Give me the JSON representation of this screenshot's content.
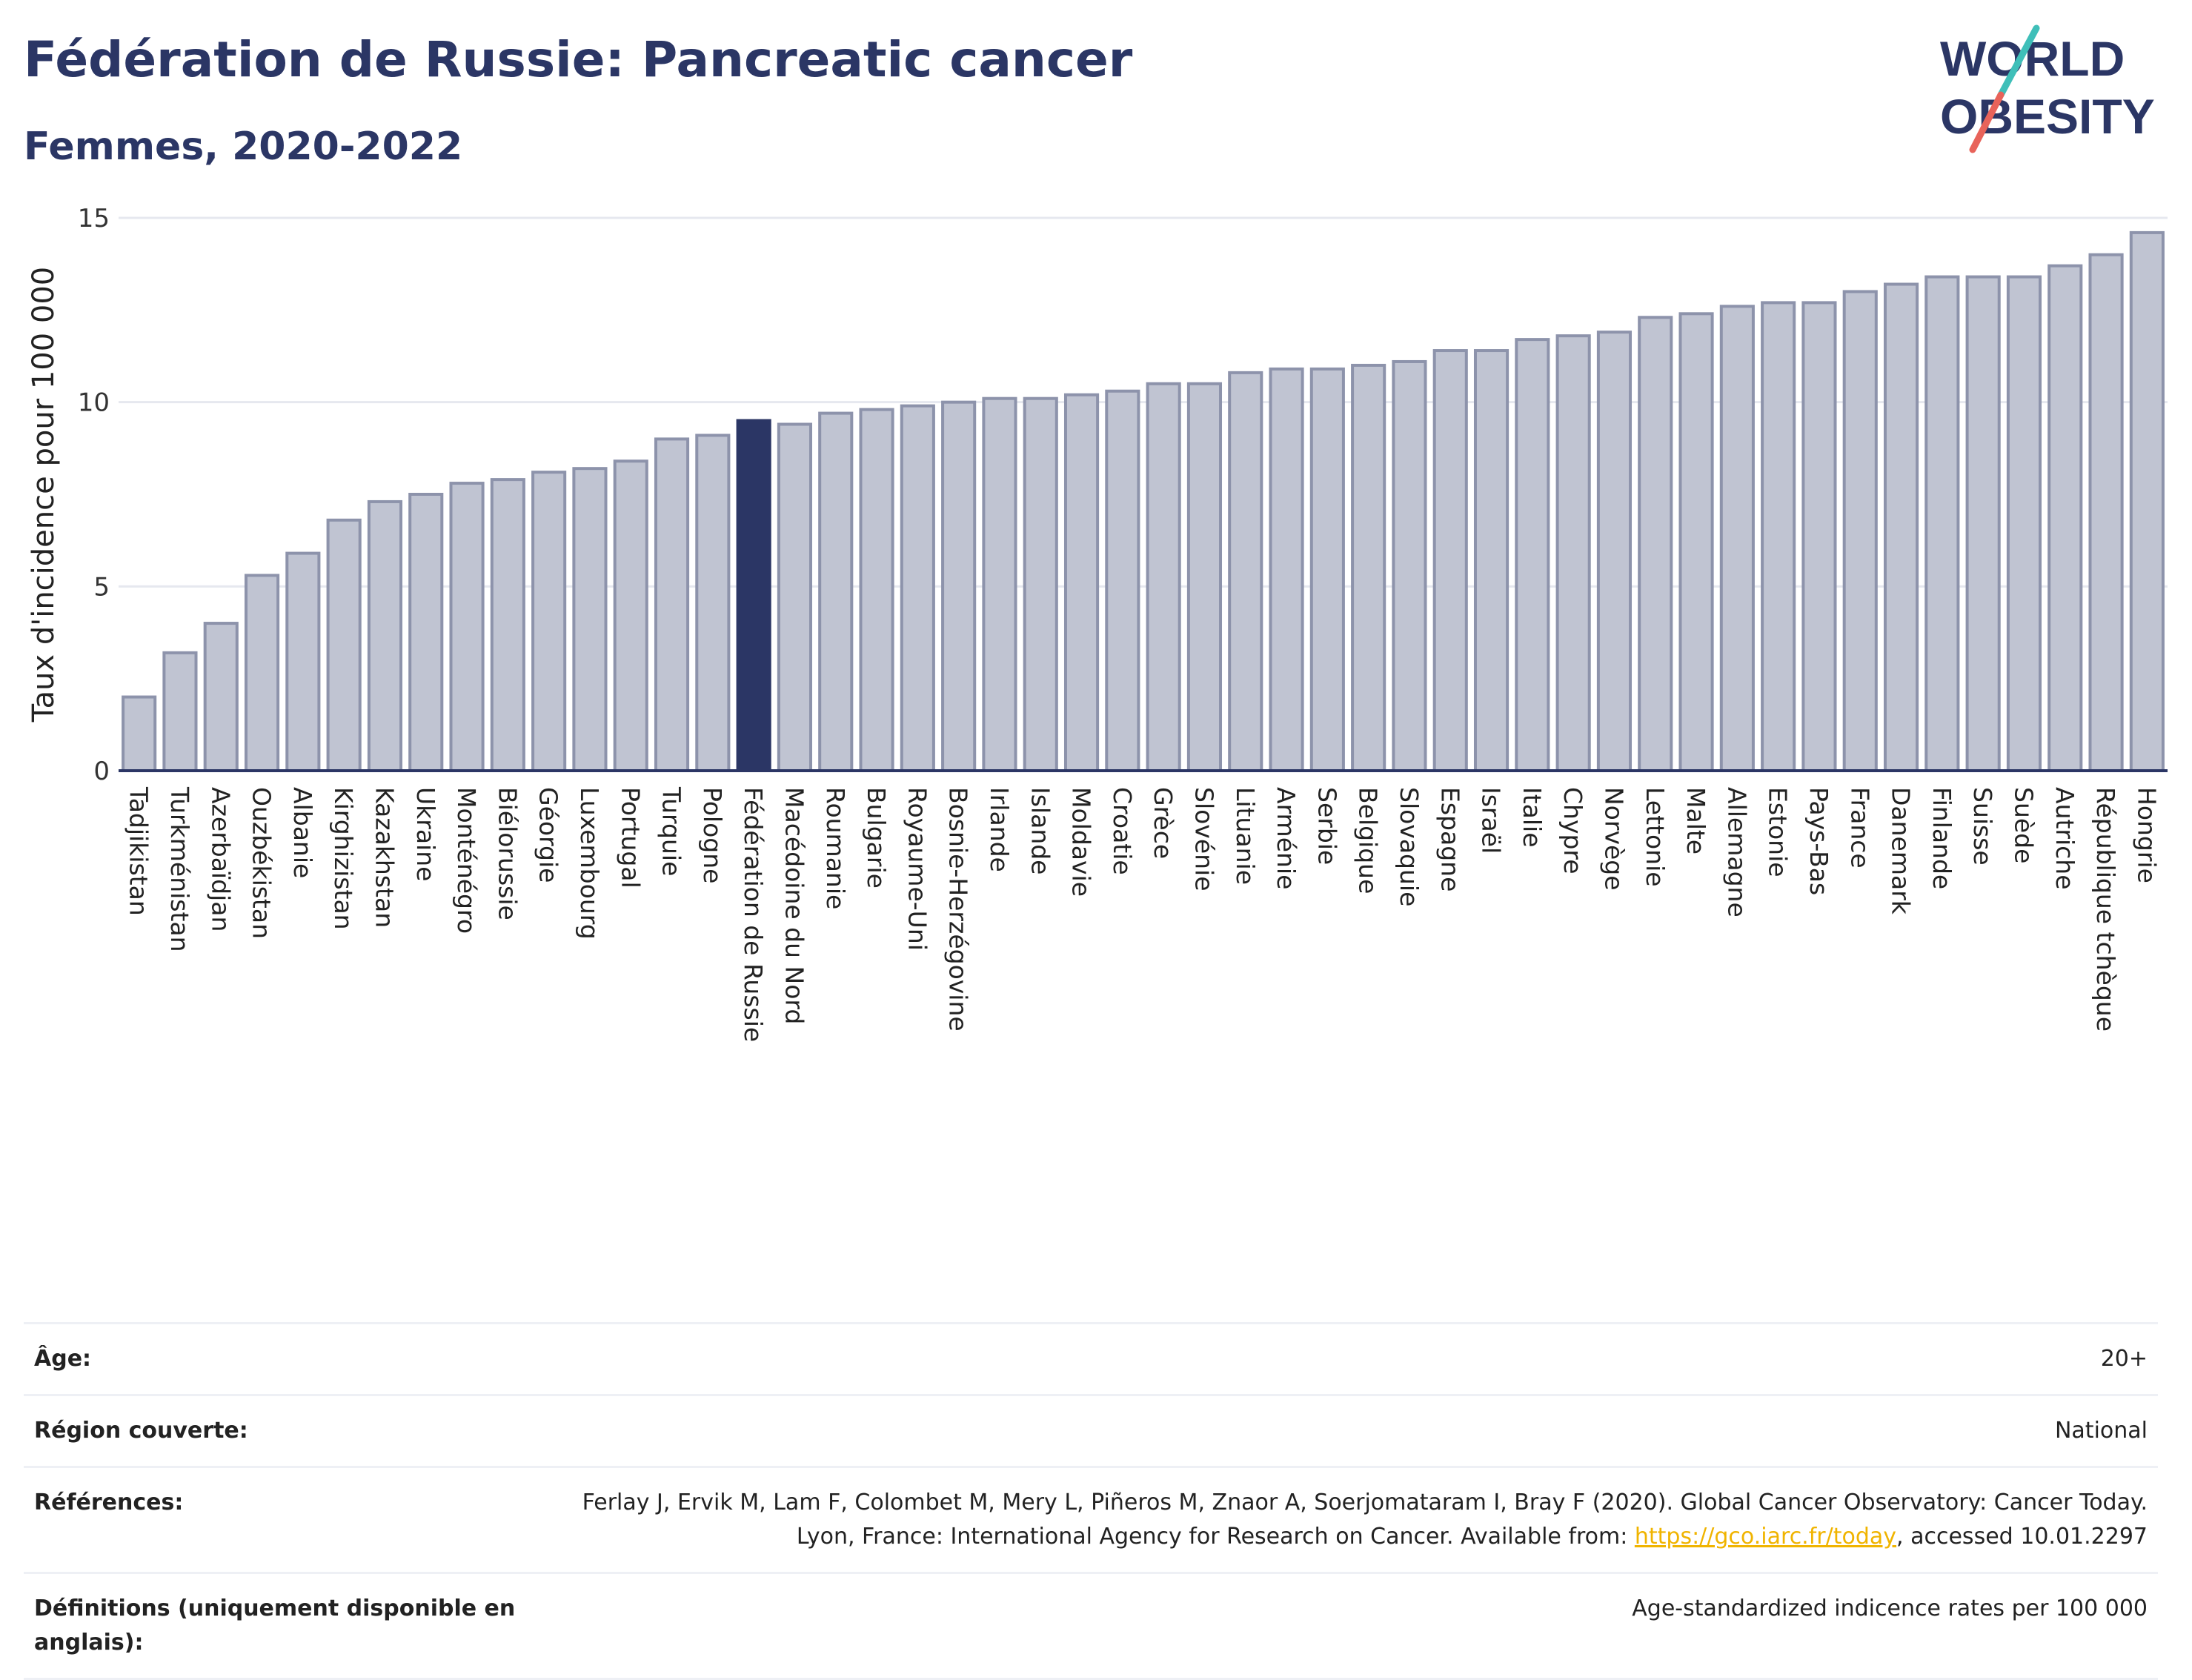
{
  "header": {
    "title": "Fédération de Russie: Pancreatic cancer",
    "subtitle": "Femmes, 2020-2022"
  },
  "logo": {
    "line1": "WORLD",
    "line2": "OBESITY",
    "colors": {
      "text": "#2b3665",
      "slash_top": "#3fbfb9",
      "slash_bottom": "#e8635a"
    }
  },
  "colors": {
    "bar": "#c0c4d2",
    "bar_stroke": "#8d93ab",
    "highlight": "#2b3665",
    "grid": "#e6e8ef",
    "axis": "#2b3665"
  },
  "chart_data": {
    "type": "bar",
    "ylabel": "Taux d'incidence pour 100 000",
    "ylim": [
      0,
      15
    ],
    "yticks": [
      0,
      5,
      10,
      15
    ],
    "highlight": "Fédération de Russie",
    "categories": [
      "Tadjikistan",
      "Turkménistan",
      "Azerbaïdjan",
      "Ouzbékistan",
      "Albanie",
      "Kirghizistan",
      "Kazakhstan",
      "Ukraine",
      "Monténégro",
      "Biélorussie",
      "Géorgie",
      "Luxembourg",
      "Portugal",
      "Turquie",
      "Pologne",
      "Fédération de Russie",
      "Macédoine du Nord",
      "Roumanie",
      "Bulgarie",
      "Royaume-Uni",
      "Bosnie-Herzégovine",
      "Irlande",
      "Islande",
      "Moldavie",
      "Croatie",
      "Grèce",
      "Slovénie",
      "Lituanie",
      "Arménie",
      "Serbie",
      "Belgique",
      "Slovaquie",
      "Espagne",
      "Israël",
      "Italie",
      "Chypre",
      "Norvège",
      "Lettonie",
      "Malte",
      "Allemagne",
      "Estonie",
      "Pays-Bas",
      "France",
      "Danemark",
      "Finlande",
      "Suisse",
      "Suède",
      "Autriche",
      "République tchèque",
      "Hongrie"
    ],
    "values": [
      2.0,
      3.2,
      4.0,
      5.3,
      5.9,
      6.8,
      7.3,
      7.5,
      7.8,
      7.9,
      8.1,
      8.2,
      8.4,
      9.0,
      9.1,
      9.5,
      9.4,
      9.7,
      9.8,
      9.9,
      10.0,
      10.1,
      10.1,
      10.2,
      10.3,
      10.5,
      10.5,
      10.8,
      10.9,
      10.9,
      11.0,
      11.1,
      11.4,
      11.4,
      11.7,
      11.8,
      11.9,
      12.3,
      12.4,
      12.6,
      12.7,
      12.7,
      13.0,
      13.2,
      13.4,
      13.4,
      13.4,
      13.7,
      14.0,
      14.6
    ]
  },
  "meta": {
    "age_label": "Âge:",
    "age_value": "20+",
    "region_label": "Région couverte:",
    "region_value": "National",
    "ref_label": "Références:",
    "ref_text_1": "Ferlay J, Ervik M, Lam F, Colombet M, Mery L, Piñeros M, Znaor A, Soerjomataram I, Bray F (2020). Global Cancer Observatory: Cancer Today. Lyon, France: International Agency for Research on Cancer. Available from: ",
    "ref_link": "https://gco.iarc.fr/today",
    "ref_text_2": ", accessed 10.01.2297",
    "def_label": "Définitions (uniquement disponible en anglais):",
    "def_value": "Age-standardized indicence rates per 100 000"
  }
}
